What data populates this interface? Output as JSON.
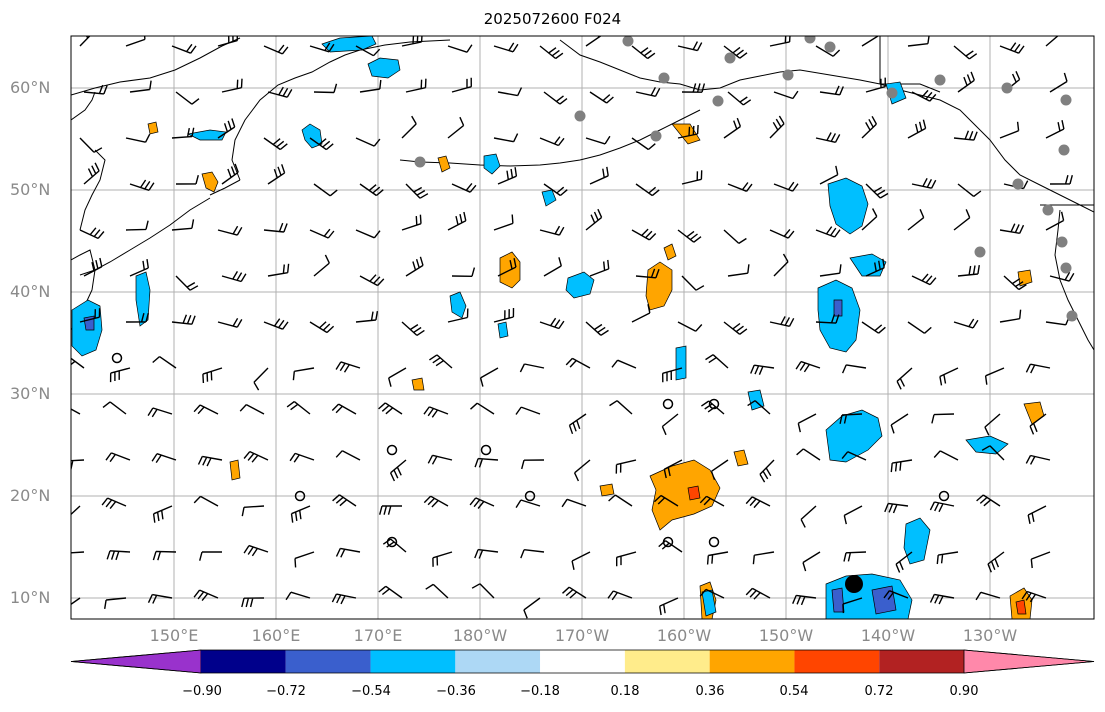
{
  "title": "2025072600 F024",
  "lat_ticks": [
    "60°N",
    "50°N",
    "40°N",
    "30°N",
    "20°N",
    "10°N"
  ],
  "lon_ticks": [
    "150°E",
    "160°E",
    "170°E",
    "180°W",
    "170°W",
    "160°W",
    "150°W",
    "140°W",
    "130°W"
  ],
  "colorbar": {
    "labels": [
      "−0.90",
      "−0.72",
      "−0.54",
      "−0.36",
      "−0.18",
      "0.18",
      "0.36",
      "0.54",
      "0.72",
      "0.90"
    ],
    "colors": [
      "#9932cc",
      "#00008b",
      "#3a5fcd",
      "#00bfff",
      "#add8f5",
      "#ffffff",
      "#ffec8b",
      "#ffa500",
      "#ff4500",
      "#b22222",
      "#ff88aa"
    ]
  }
}
